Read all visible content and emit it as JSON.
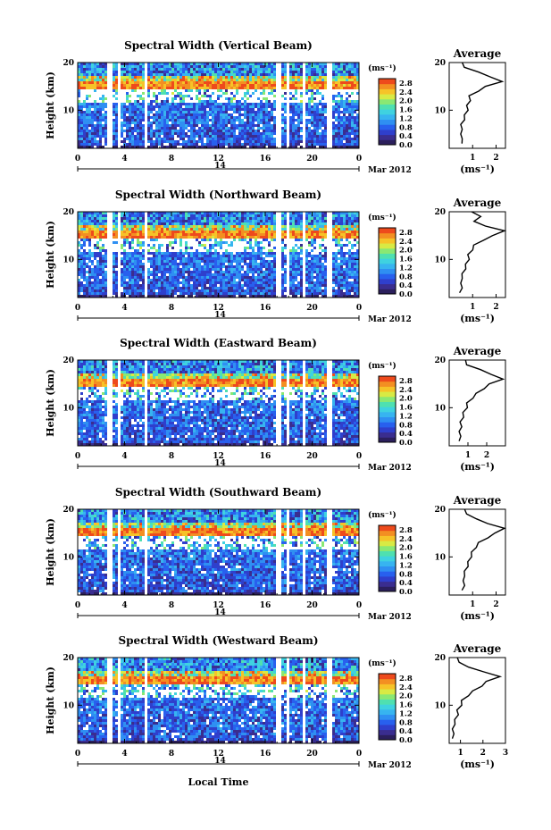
{
  "colors": {
    "scale": [
      "#2b1f5c",
      "#3a2d8f",
      "#2f3fcc",
      "#2860ee",
      "#2f8ff2",
      "#37b4f0",
      "#3fd2e0",
      "#4fe0b0",
      "#8ae873",
      "#d8ea44",
      "#f6c328",
      "#f38f22",
      "#ee4a1c"
    ],
    "missing": "#ffffff",
    "axis": "#000000"
  },
  "shared": {
    "date_label": "Mar 2012",
    "day_label": "14",
    "unit_label": "(ms⁻¹)",
    "x_axis_label": "Local Time",
    "height_label": "Height (km)",
    "avg_title": "Average",
    "avg_xlabel": "(ms⁻¹)",
    "time_ticks": [
      "0",
      "4",
      "8",
      "12",
      "16",
      "20",
      "0"
    ],
    "height_ticks": [
      "10",
      "20"
    ],
    "colorbar_ticks": [
      "0.0",
      "0.4",
      "0.8",
      "1.2",
      "1.6",
      "2.0",
      "2.4",
      "2.8"
    ]
  },
  "chart_data": [
    {
      "type": "heatmap",
      "title": "Spectral Width (Vertical Beam)",
      "xlabel": "",
      "ylabel": "Height (km)",
      "xlim": [
        0,
        24
      ],
      "ylim": [
        2,
        20
      ],
      "zlim": [
        0,
        3.0
      ],
      "average_profile": {
        "title": "Average",
        "xlim": [
          0,
          2.4
        ],
        "xticks": [
          "1",
          "2"
        ],
        "points": [
          [
            0.6,
            3
          ],
          [
            0.5,
            4
          ],
          [
            0.55,
            5
          ],
          [
            0.5,
            6
          ],
          [
            0.55,
            7
          ],
          [
            0.6,
            8
          ],
          [
            0.7,
            9
          ],
          [
            0.75,
            10
          ],
          [
            0.8,
            11
          ],
          [
            0.85,
            12
          ],
          [
            0.9,
            13
          ],
          [
            1.2,
            14
          ],
          [
            1.6,
            15
          ],
          [
            2.2,
            16
          ],
          [
            1.8,
            17
          ],
          [
            1.2,
            18
          ],
          [
            0.7,
            19
          ],
          [
            0.5,
            20
          ]
        ]
      }
    },
    {
      "type": "heatmap",
      "title": "Spectral Width (Northward Beam)",
      "xlabel": "",
      "ylabel": "Height (km)",
      "xlim": [
        0,
        24
      ],
      "ylim": [
        2,
        20
      ],
      "zlim": [
        0,
        3.0
      ],
      "average_profile": {
        "title": "Average",
        "xlim": [
          0,
          2.4
        ],
        "xticks": [
          "1",
          "2"
        ],
        "points": [
          [
            0.5,
            3
          ],
          [
            0.5,
            4
          ],
          [
            0.55,
            5
          ],
          [
            0.5,
            6
          ],
          [
            0.6,
            7
          ],
          [
            0.65,
            8
          ],
          [
            0.75,
            9
          ],
          [
            0.8,
            10
          ],
          [
            0.85,
            11
          ],
          [
            0.95,
            12
          ],
          [
            1.1,
            13
          ],
          [
            1.4,
            14
          ],
          [
            1.9,
            15
          ],
          [
            2.3,
            16
          ],
          [
            1.6,
            17
          ],
          [
            1.0,
            18
          ],
          [
            1.4,
            19
          ],
          [
            0.9,
            20
          ]
        ]
      }
    },
    {
      "type": "heatmap",
      "title": "Spectral Width (Eastward Beam)",
      "xlabel": "",
      "ylabel": "Height (km)",
      "xlim": [
        0,
        24
      ],
      "ylim": [
        2,
        20
      ],
      "zlim": [
        0,
        3.0
      ],
      "average_profile": {
        "title": "Average",
        "xlim": [
          0,
          3.0
        ],
        "xticks": [
          "1",
          "2"
        ],
        "points": [
          [
            0.6,
            3
          ],
          [
            0.55,
            4
          ],
          [
            0.6,
            5
          ],
          [
            0.6,
            6
          ],
          [
            0.65,
            7
          ],
          [
            0.7,
            8
          ],
          [
            0.8,
            9
          ],
          [
            0.9,
            10
          ],
          [
            1.0,
            11
          ],
          [
            1.2,
            12
          ],
          [
            1.5,
            13
          ],
          [
            1.8,
            14
          ],
          [
            2.2,
            15
          ],
          [
            2.8,
            16
          ],
          [
            2.3,
            17
          ],
          [
            1.6,
            18
          ],
          [
            1.0,
            19
          ],
          [
            0.8,
            20
          ]
        ]
      }
    },
    {
      "type": "heatmap",
      "title": "Spectral Width (Southward Beam)",
      "xlabel": "",
      "ylabel": "Height (km)",
      "xlim": [
        0,
        24
      ],
      "ylim": [
        2,
        20
      ],
      "zlim": [
        0,
        3.0
      ],
      "average_profile": {
        "title": "Average",
        "xlim": [
          0,
          2.4
        ],
        "xticks": [
          "1",
          "2"
        ],
        "points": [
          [
            0.6,
            3
          ],
          [
            0.6,
            4
          ],
          [
            0.65,
            5
          ],
          [
            0.6,
            6
          ],
          [
            0.7,
            7
          ],
          [
            0.75,
            8
          ],
          [
            0.85,
            9
          ],
          [
            0.9,
            10
          ],
          [
            1.0,
            11
          ],
          [
            1.1,
            12
          ],
          [
            1.3,
            13
          ],
          [
            1.6,
            14
          ],
          [
            2.0,
            15
          ],
          [
            2.3,
            16
          ],
          [
            1.7,
            17
          ],
          [
            1.1,
            18
          ],
          [
            0.8,
            19
          ],
          [
            0.6,
            20
          ]
        ]
      }
    },
    {
      "type": "heatmap",
      "title": "Spectral Width (Westward Beam)",
      "xlabel": "Local Time",
      "ylabel": "Height (km)",
      "xlim": [
        0,
        24
      ],
      "ylim": [
        2,
        20
      ],
      "zlim": [
        0,
        3.0
      ],
      "average_profile": {
        "title": "Average",
        "xlim": [
          0.5,
          3.0
        ],
        "xticks": [
          "1",
          "2",
          "3"
        ],
        "points": [
          [
            0.7,
            3
          ],
          [
            0.65,
            4
          ],
          [
            0.7,
            5
          ],
          [
            0.7,
            6
          ],
          [
            0.8,
            7
          ],
          [
            0.85,
            8
          ],
          [
            0.9,
            9
          ],
          [
            1.0,
            10
          ],
          [
            1.1,
            11
          ],
          [
            1.3,
            12
          ],
          [
            1.6,
            13
          ],
          [
            1.9,
            14
          ],
          [
            2.2,
            15
          ],
          [
            2.7,
            16
          ],
          [
            2.1,
            17
          ],
          [
            1.3,
            18
          ],
          [
            1.0,
            19
          ],
          [
            0.8,
            20
          ]
        ]
      }
    }
  ]
}
